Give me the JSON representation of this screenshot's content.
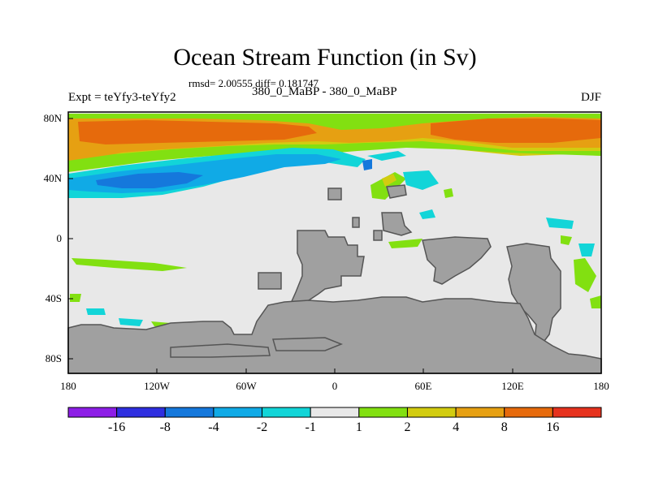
{
  "title": "Ocean Stream Function (in Sv)",
  "stats": "rmsd= 2.00555 diff= 0.181747",
  "subtitle": "380_0_MaBP - 380_0_MaBP",
  "expt": "Expt = teYfy3-teYfy2",
  "season": "DJF",
  "y_ticks": [
    "80N",
    "40N",
    "0",
    "40S",
    "80S"
  ],
  "x_ticks": [
    "180",
    "120W",
    "60W",
    "0",
    "60E",
    "120E",
    "180"
  ],
  "colorbar": {
    "labels": [
      "-16",
      "-8",
      "-4",
      "-2",
      "-1",
      "1",
      "2",
      "4",
      "8",
      "16"
    ],
    "colors": [
      "#8d1ee6",
      "#2f2fe0",
      "#1578dc",
      "#10aae6",
      "#12d5d8",
      "#e8e8e8",
      "#82e011",
      "#d2cc10",
      "#e6a012",
      "#e66a0c",
      "#e6321e"
    ]
  },
  "colors": {
    "land": "#a0a0a0",
    "neutral": "#e8e8e8"
  }
}
